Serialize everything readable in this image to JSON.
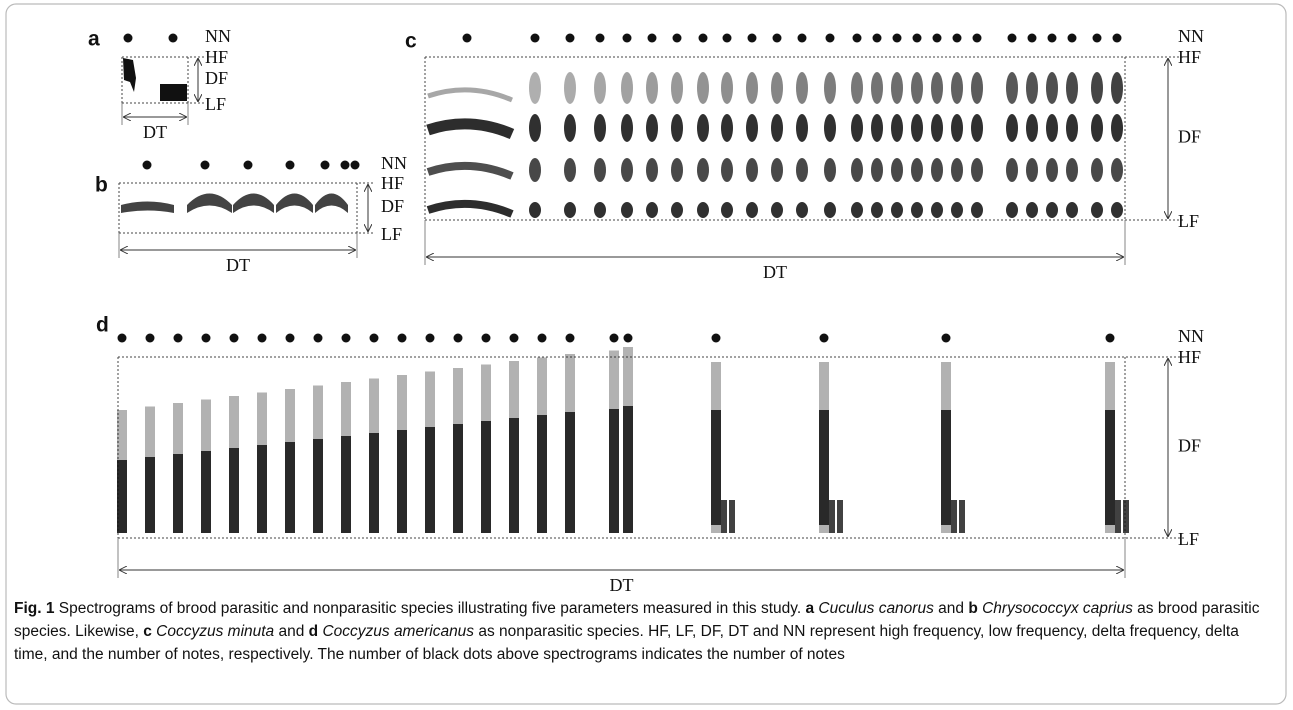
{
  "panels": {
    "a": {
      "letter": "a",
      "nn": "NN",
      "hf": "HF",
      "df": "DF",
      "lf": "LF",
      "dt": "DT"
    },
    "b": {
      "letter": "b",
      "nn": "NN",
      "hf": "HF",
      "df": "DF",
      "lf": "LF",
      "dt": "DT"
    },
    "c": {
      "letter": "c",
      "nn": "NN",
      "hf": "HF",
      "df": "DF",
      "lf": "LF",
      "dt": "DT"
    },
    "d": {
      "letter": "d",
      "nn": "NN",
      "hf": "HF",
      "df": "DF",
      "lf": "LF",
      "dt": "DT"
    }
  },
  "caption": [
    "Fig. 1",
    "  Spectrograms of brood parasitic and nonparasitic species illustrating five parameters measured in this study. ",
    "a",
    " Cuculus canorus",
    " and ",
    "b",
    " Chrysococcyx caprius",
    " as brood parasitic species. Likewise, ",
    "c",
    " Coccyzus minuta",
    " and ",
    "d",
    " Coccyzus americanus",
    " as nonparasitic species. HF, LF, DF, DT and NN represent high frequency, low frequency, delta frequency, delta time, and the number of notes, respectively. The number of black dots above spectrograms indicates the number of notes"
  ]
}
